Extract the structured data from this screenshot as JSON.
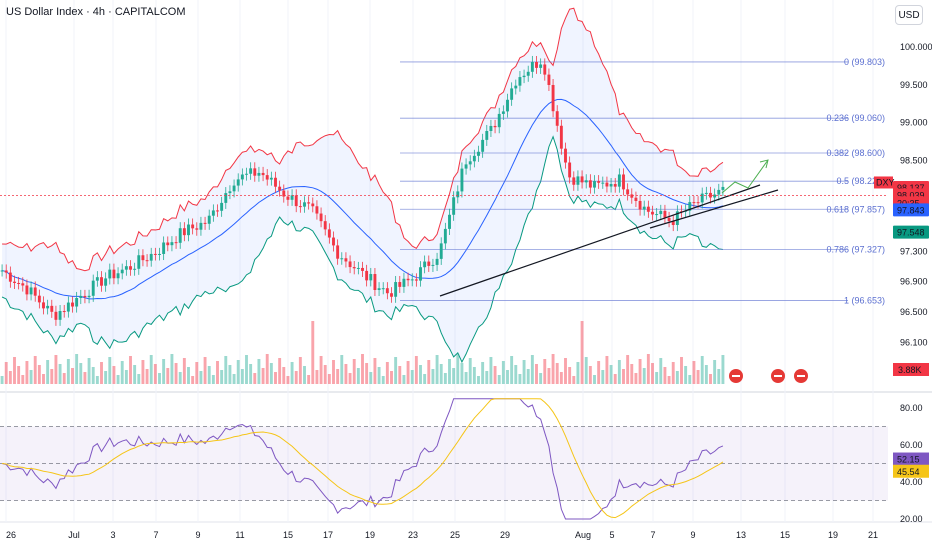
{
  "header": {
    "title": "US Dollar Index · 4h · CAPITALCOM",
    "currency_button": "USD"
  },
  "price_axis": [
    "100.000",
    "99.500",
    "99.000",
    "98.500",
    "97.300",
    "96.900",
    "96.500",
    "96.100",
    "95.750"
  ],
  "fib_levels": [
    {
      "label": "0 (99.803)",
      "value": 99.803
    },
    {
      "label": "0.236 (99.060)",
      "value": 99.06
    },
    {
      "label": "0.382 (98.600)",
      "value": 98.6
    },
    {
      "label": "0.5 (98.228)",
      "value": 98.228
    },
    {
      "label": "0.618 (97.857)",
      "value": 97.857
    },
    {
      "label": "0.786 (97.327)",
      "value": 97.327
    },
    {
      "label": "1 (96.653)",
      "value": 96.653
    }
  ],
  "badges": {
    "upper_band": {
      "text": "98.137",
      "color": "#f23645"
    },
    "symbol": {
      "text": "DXY",
      "color": "#f23645"
    },
    "price": {
      "text": "98.039",
      "color": "#f23645"
    },
    "countdown": {
      "text": "20:35",
      "color": "#f23645"
    },
    "basis": {
      "text": "97.843",
      "color": "#2962ff"
    },
    "lower_band": {
      "text": "97.548",
      "color": "#089981"
    },
    "volume": {
      "text": "3.88K",
      "color": "#f23645"
    }
  },
  "rsi": {
    "axis": [
      "80.00",
      "60.00",
      "40.00",
      "20.00"
    ],
    "value_badge": {
      "text": "52.15",
      "color": "#7e57c2"
    },
    "ma_badge": {
      "text": "45.54",
      "color": "#f5c518"
    }
  },
  "x_axis": [
    "26",
    "Jul",
    "3",
    "7",
    "9",
    "11",
    "15",
    "17",
    "19",
    "23",
    "25",
    "29",
    "Aug",
    "5",
    "7",
    "9",
    "13",
    "15",
    "19",
    "21"
  ],
  "colors": {
    "up": "#22ab94",
    "down": "#f23645",
    "basis": "#2962ff",
    "upper": "#f23645",
    "lower": "#089981",
    "fib": "#5b6fd0",
    "rsi": "#7e57c2",
    "rsi_ma": "#f5c518",
    "event_icon": "#e53935"
  },
  "event_icons": [
    "flag-icon-us",
    "flag-icon-us",
    "flag-icon-us"
  ]
}
